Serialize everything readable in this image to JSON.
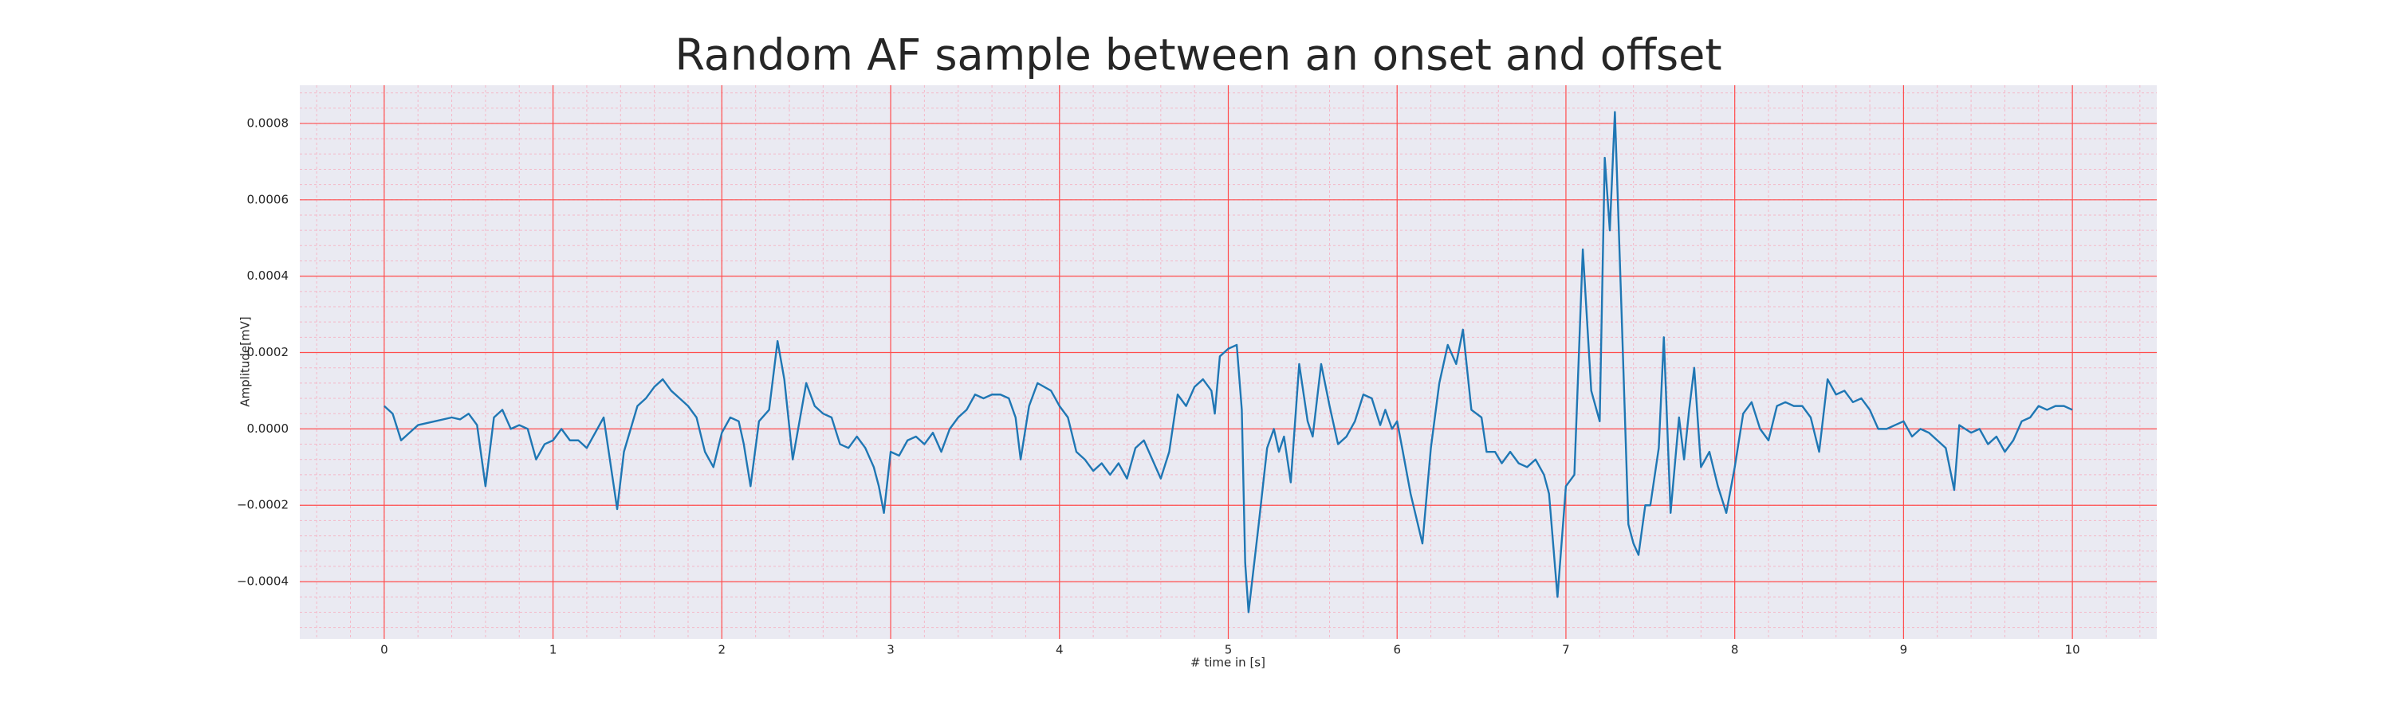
{
  "chart_data": {
    "type": "line",
    "title": "Random AF sample between an onset and offset",
    "xlabel": "# time in [s]",
    "ylabel": "Amplitude[mV]",
    "xlim": [
      -0.5,
      10.5
    ],
    "xticks": [
      0,
      1,
      2,
      3,
      4,
      5,
      6,
      7,
      8,
      9,
      10
    ],
    "ylim": [
      -0.00055,
      0.0009
    ],
    "yticks": [
      {
        "value": -0.0004,
        "label": "−0.0004"
      },
      {
        "value": -0.0002,
        "label": "−0.0002"
      },
      {
        "value": 0,
        "label": "0.0000"
      },
      0.0002,
      0.0004,
      0.0006,
      0.0008
    ],
    "grid": true,
    "grid_color": "#ff4d4d",
    "minor_grid": true,
    "minor_grid_color": "#f4b8c8",
    "background": "#eaeaf2",
    "x": [
      0,
      0.05,
      0.1,
      0.15,
      0.2,
      0.3,
      0.4,
      0.45,
      0.5,
      0.55,
      0.6,
      0.65,
      0.7,
      0.75,
      0.8,
      0.85,
      0.9,
      0.95,
      1.0,
      1.05,
      1.1,
      1.15,
      1.2,
      1.25,
      1.3,
      1.35,
      1.38,
      1.42,
      1.5,
      1.55,
      1.6,
      1.65,
      1.7,
      1.75,
      1.8,
      1.85,
      1.9,
      1.95,
      2.0,
      2.05,
      2.1,
      2.13,
      2.17,
      2.22,
      2.28,
      2.33,
      2.37,
      2.42,
      2.5,
      2.55,
      2.6,
      2.65,
      2.7,
      2.75,
      2.8,
      2.85,
      2.9,
      2.93,
      2.96,
      3.0,
      3.05,
      3.1,
      3.15,
      3.2,
      3.25,
      3.3,
      3.35,
      3.4,
      3.45,
      3.5,
      3.55,
      3.6,
      3.65,
      3.7,
      3.74,
      3.77,
      3.82,
      3.87,
      3.95,
      4.0,
      4.05,
      4.1,
      4.15,
      4.2,
      4.25,
      4.3,
      4.35,
      4.4,
      4.45,
      4.5,
      4.55,
      4.6,
      4.65,
      4.7,
      4.75,
      4.8,
      4.85,
      4.9,
      4.92,
      4.95,
      5.0,
      5.05,
      5.08,
      5.1,
      5.12,
      5.18,
      5.23,
      5.27,
      5.3,
      5.33,
      5.37,
      5.42,
      5.47,
      5.5,
      5.55,
      5.6,
      5.65,
      5.7,
      5.75,
      5.8,
      5.85,
      5.9,
      5.93,
      5.97,
      6.0,
      6.03,
      6.08,
      6.15,
      6.2,
      6.25,
      6.3,
      6.35,
      6.39,
      6.44,
      6.5,
      6.53,
      6.58,
      6.62,
      6.67,
      6.72,
      6.77,
      6.82,
      6.87,
      6.9,
      6.95,
      7.0,
      7.05,
      7.1,
      7.15,
      7.2,
      7.23,
      7.26,
      7.29,
      7.33,
      7.37,
      7.4,
      7.43,
      7.47,
      7.5,
      7.55,
      7.58,
      7.62,
      7.67,
      7.7,
      7.73,
      7.76,
      7.8,
      7.85,
      7.9,
      7.95,
      8.0,
      8.05,
      8.1,
      8.15,
      8.2,
      8.25,
      8.3,
      8.35,
      8.4,
      8.45,
      8.5,
      8.55,
      8.6,
      8.65,
      8.7,
      8.75,
      8.8,
      8.85,
      8.9,
      8.95,
      9.0,
      9.05,
      9.1,
      9.15,
      9.2,
      9.25,
      9.3,
      9.33,
      9.4,
      9.45,
      9.5,
      9.55,
      9.6,
      9.65,
      9.7,
      9.75,
      9.8,
      9.85,
      9.9,
      9.95,
      10.0
    ],
    "series": [
      {
        "color": "#1f77b4",
        "values": [
          6e-05,
          4e-05,
          -3e-05,
          -1e-05,
          1e-05,
          2e-05,
          3e-05,
          2.5e-05,
          4e-05,
          1e-05,
          -0.00015,
          3e-05,
          5e-05,
          0,
          1e-05,
          0,
          -8e-05,
          -4e-05,
          -3e-05,
          0,
          -3e-05,
          -3e-05,
          -5e-05,
          -1e-05,
          3e-05,
          -0.00012,
          -0.00021,
          -6e-05,
          6e-05,
          8e-05,
          0.00011,
          0.00013,
          0.0001,
          8e-05,
          6e-05,
          3e-05,
          -6e-05,
          -0.0001,
          -1e-05,
          3e-05,
          2e-05,
          -4e-05,
          -0.00015,
          2e-05,
          5e-05,
          0.00023,
          0.00013,
          -8e-05,
          0.00012,
          6e-05,
          4e-05,
          3e-05,
          -4e-05,
          -5e-05,
          -2e-05,
          -5e-05,
          -0.0001,
          -0.00015,
          -0.00022,
          -6e-05,
          -7e-05,
          -3e-05,
          -2e-05,
          -4e-05,
          -1e-05,
          -6e-05,
          0,
          3e-05,
          5e-05,
          9e-05,
          8e-05,
          9e-05,
          9e-05,
          8e-05,
          3e-05,
          -8e-05,
          6e-05,
          0.00012,
          0.0001,
          6e-05,
          3e-05,
          -6e-05,
          -8e-05,
          -0.00011,
          -9e-05,
          -0.00012,
          -9e-05,
          -0.00013,
          -5e-05,
          -3e-05,
          -8e-05,
          -0.00013,
          -6e-05,
          9e-05,
          6e-05,
          0.00011,
          0.00013,
          0.0001,
          4e-05,
          0.00019,
          0.00021,
          0.00022,
          5e-05,
          -0.00035,
          -0.00048,
          -0.00025,
          -5e-05,
          0,
          -6e-05,
          -2e-05,
          -0.00014,
          0.00017,
          2e-05,
          -2e-05,
          0.00017,
          6e-05,
          -4e-05,
          -2e-05,
          2e-05,
          9e-05,
          8e-05,
          1e-05,
          5e-05,
          0,
          2e-05,
          -5e-05,
          -0.00017,
          -0.0003,
          -5e-05,
          0.00012,
          0.00022,
          0.00017,
          0.00026,
          5e-05,
          3e-05,
          -6e-05,
          -6e-05,
          -9e-05,
          -6e-05,
          -9e-05,
          -0.0001,
          -8e-05,
          -0.00012,
          -0.00017,
          -0.00044,
          -0.00015,
          -0.00012,
          0.00047,
          0.0001,
          2e-05,
          0.00071,
          0.00052,
          0.00083,
          0.0003,
          -0.00025,
          -0.0003,
          -0.00033,
          -0.0002,
          -0.0002,
          -5e-05,
          0.00024,
          -0.00022,
          3e-05,
          -8e-05,
          5e-05,
          0.00016,
          -0.0001,
          -6e-05,
          -0.00015,
          -0.00022,
          -0.0001,
          4e-05,
          7e-05,
          0,
          -3e-05,
          6e-05,
          7e-05,
          6e-05,
          6e-05,
          3e-05,
          -6e-05,
          0.00013,
          9e-05,
          0.0001,
          7e-05,
          8e-05,
          5e-05,
          0,
          0,
          1e-05,
          2e-05,
          -2e-05,
          0,
          -1e-05,
          -3e-05,
          -5e-05,
          -0.00016,
          1e-05,
          -1e-05,
          0,
          -4e-05,
          -2e-05,
          -6e-05,
          -3e-05,
          2e-05,
          3e-05,
          6e-05,
          5e-05,
          6e-05,
          6e-05,
          5e-05
        ]
      }
    ]
  }
}
